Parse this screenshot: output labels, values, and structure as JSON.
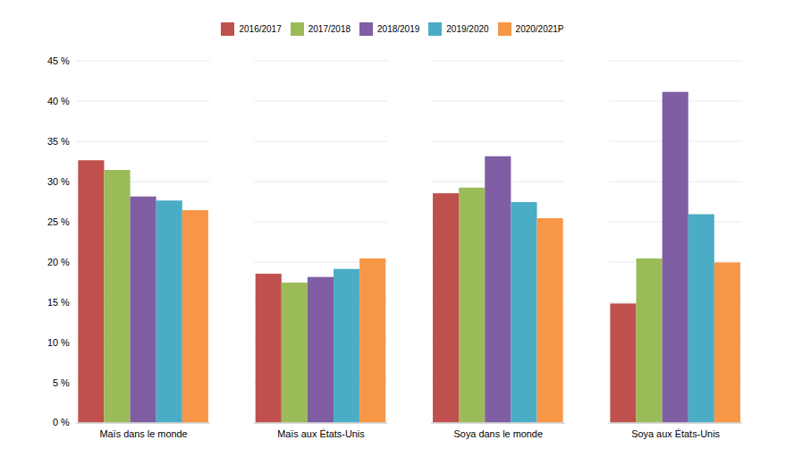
{
  "chart_data": {
    "type": "bar",
    "categories": [
      "Maïs dans le monde",
      "Maïs aux États-Unis",
      "Soya dans le monde",
      "Soya aux États-Unis"
    ],
    "series": [
      {
        "name": "2016/2017",
        "color": "#C0504D",
        "values": [
          0.326,
          0.185,
          0.285,
          0.148
        ]
      },
      {
        "name": "2017/2018",
        "color": "#9BBB59",
        "values": [
          0.314,
          0.174,
          0.292,
          0.204
        ]
      },
      {
        "name": "2018/2019",
        "color": "#7F5EA3",
        "values": [
          0.281,
          0.181,
          0.331,
          0.411
        ]
      },
      {
        "name": "2019/2020",
        "color": "#4BACC6",
        "values": [
          0.276,
          0.191,
          0.274,
          0.259
        ]
      },
      {
        "name": "2020/2021P",
        "color": "#F79646",
        "values": [
          0.264,
          0.204,
          0.254,
          0.199
        ]
      }
    ],
    "ylim": [
      0,
      0.45
    ],
    "yticks": [
      {
        "value": 0.0,
        "label": "0 %"
      },
      {
        "value": 0.05,
        "label": "5 %"
      },
      {
        "value": 0.1,
        "label": "10 %"
      },
      {
        "value": 0.15,
        "label": "15 %"
      },
      {
        "value": 0.2,
        "label": "20 %"
      },
      {
        "value": 0.25,
        "label": "25 %"
      },
      {
        "value": 0.3,
        "label": "30 %"
      },
      {
        "value": 0.35,
        "label": "35 %"
      },
      {
        "value": 0.4,
        "label": "40 %"
      },
      {
        "value": 0.45,
        "label": "45 %"
      }
    ],
    "grid": true,
    "legend": "upper center"
  }
}
